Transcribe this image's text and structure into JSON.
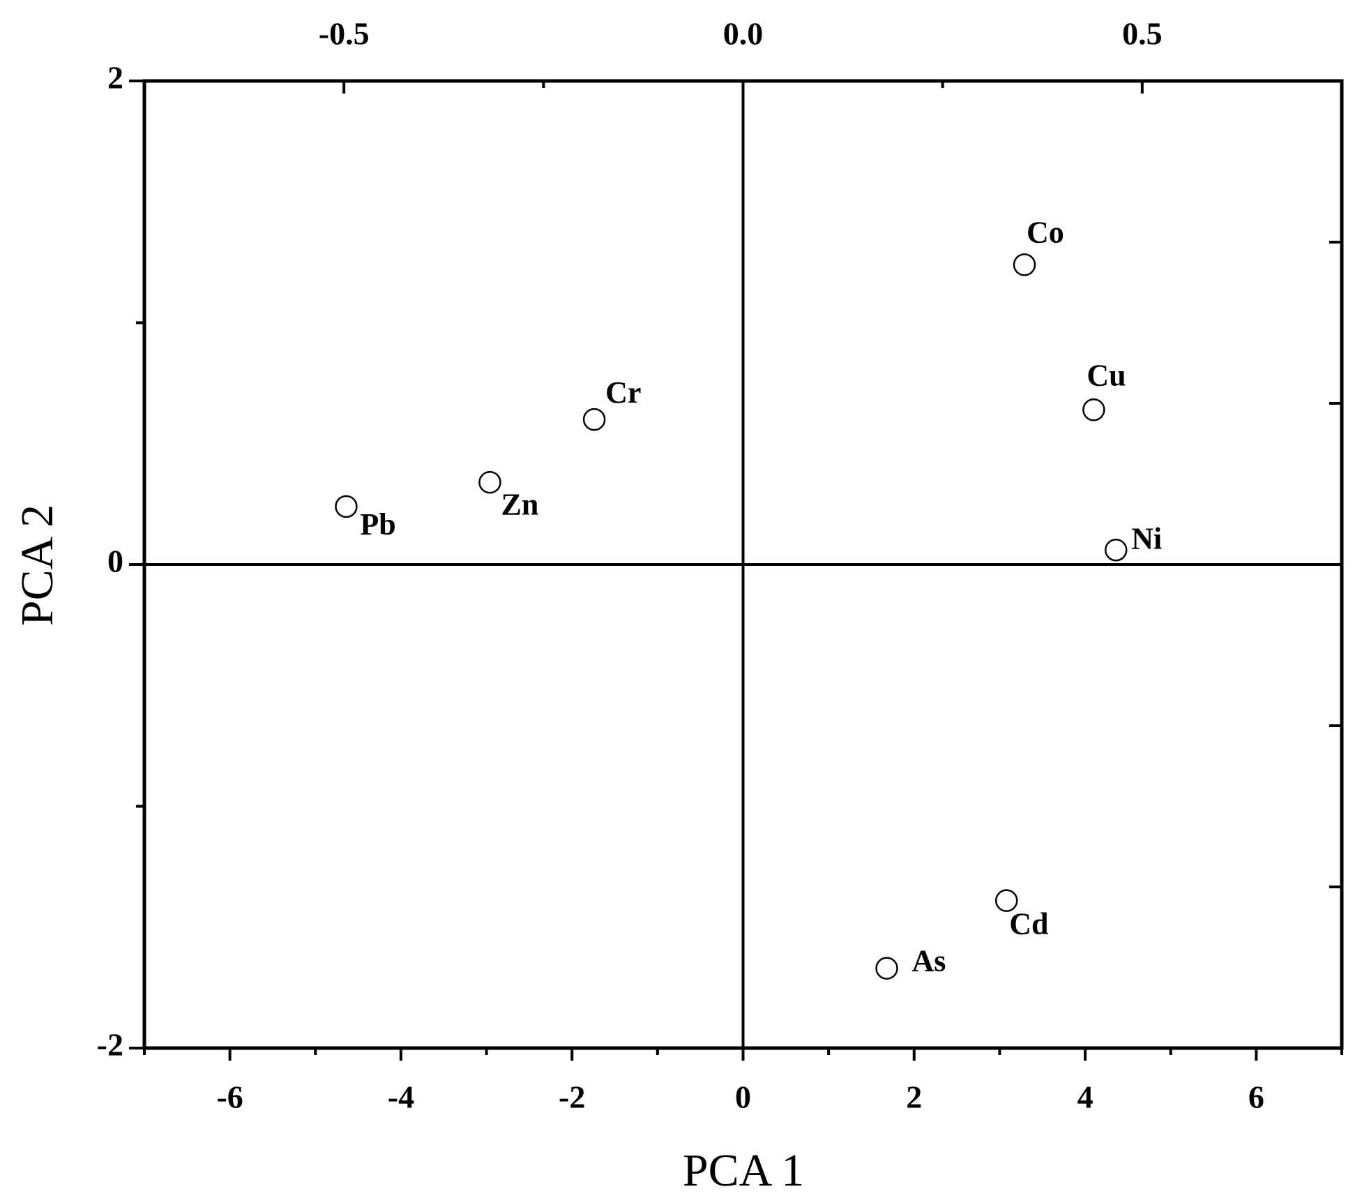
{
  "chart_data": {
    "type": "scatter",
    "x_label": "PCA 1",
    "y_label": "PCA 2",
    "points": [
      "Co",
      "Cu",
      "Ni",
      "Cr",
      "Zn",
      "Pb",
      "Cd",
      "As"
    ],
    "x": [
      3.29,
      4.1,
      4.36,
      -1.74,
      -2.96,
      -4.64,
      3.08,
      1.68
    ],
    "values": [
      1.24,
      0.64,
      0.06,
      0.6,
      0.34,
      0.24,
      -1.39,
      -1.67
    ],
    "marker": "open-circle",
    "color": "#000000",
    "xlim": [
      -7,
      7
    ],
    "xticks": [
      -6,
      -4,
      -2,
      0,
      2,
      4,
      6
    ],
    "ylim": [
      -2,
      2
    ],
    "yticks": [
      -2,
      0,
      2
    ],
    "x2lim": [
      -0.75,
      0.75
    ],
    "x2ticks": [
      -0.5,
      {
        "value": 0,
        "label": "0.0"
      },
      0.5
    ],
    "zero_lines": true
  }
}
